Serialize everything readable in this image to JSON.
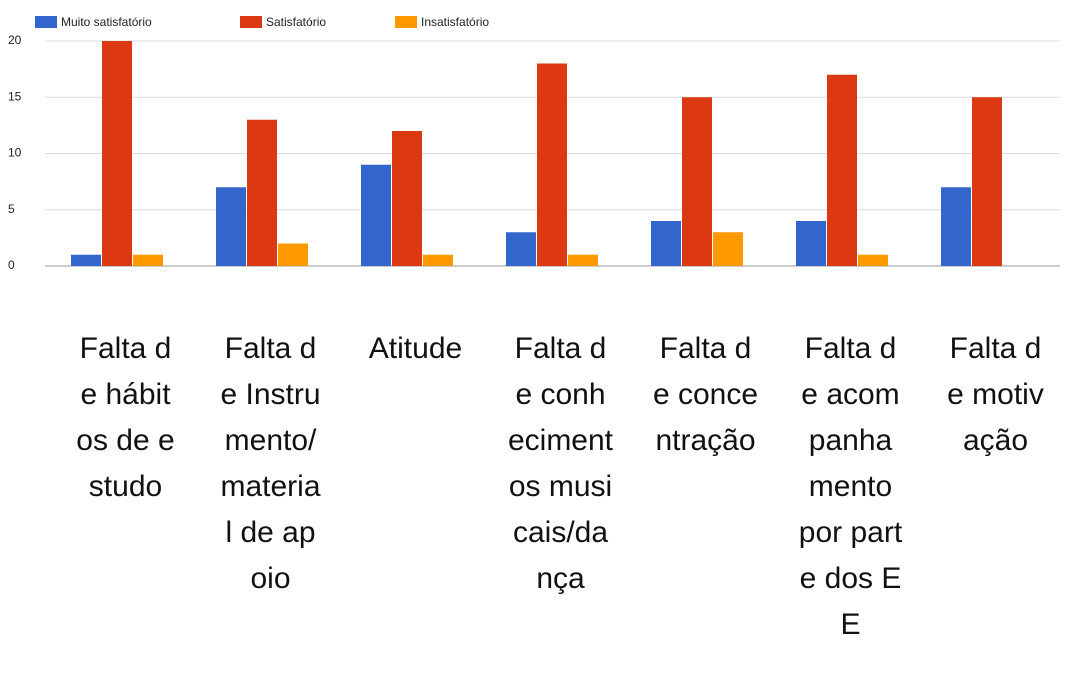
{
  "chart_data": {
    "type": "bar",
    "categories": [
      "Falta de hábitos de estudo",
      "Falta de Instrumento/material de apoio",
      "Atitude",
      "Falta de conhecimentos musicais/dança",
      "Falta de concentração",
      "Falta de acompanhamento por parte dos EE",
      "Falta de motivação"
    ],
    "series": [
      {
        "name": "Muito satisfatório",
        "color": "#3366cc",
        "values": [
          1,
          7,
          9,
          3,
          4,
          4,
          7
        ]
      },
      {
        "name": "Satisfatório",
        "color": "#dc3912",
        "values": [
          20,
          13,
          12,
          18,
          15,
          17,
          15
        ]
      },
      {
        "name": "Insatisfatório",
        "color": "#ff9900",
        "values": [
          1,
          2,
          1,
          1,
          3,
          1,
          0
        ]
      }
    ],
    "ylim": [
      0,
      20
    ],
    "yticks": [
      0,
      5,
      10,
      15,
      20
    ],
    "grid": true,
    "legend": "top"
  }
}
